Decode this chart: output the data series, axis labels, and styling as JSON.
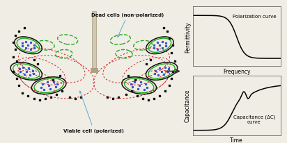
{
  "bg_color": "#f0ede5",
  "dead_cell_label": "Dead cells (non-polarized)",
  "viable_cell_label": "Viable cell (polarized)",
  "arrow_color": "#5aaad0",
  "permittivity_label": "Permittivity",
  "frequency_label": "Frequency",
  "capacitance_label": "Capacitance",
  "time_label": "Time",
  "polarization_curve_label": "Polarization curve",
  "capacitance_curve_label": "Capacitance (ΔC)\ncurve",
  "main_arrow_color": "#333333",
  "electrode_color_light": "#d0c8b0",
  "electrode_color_dark": "#a09878",
  "electrode_connector": "#b0a080",
  "red_field": "#cc2222",
  "green_cell": "#22aa22",
  "black_outline": "#111111",
  "blue_dot": "#3355cc",
  "black_sq": "#111111"
}
